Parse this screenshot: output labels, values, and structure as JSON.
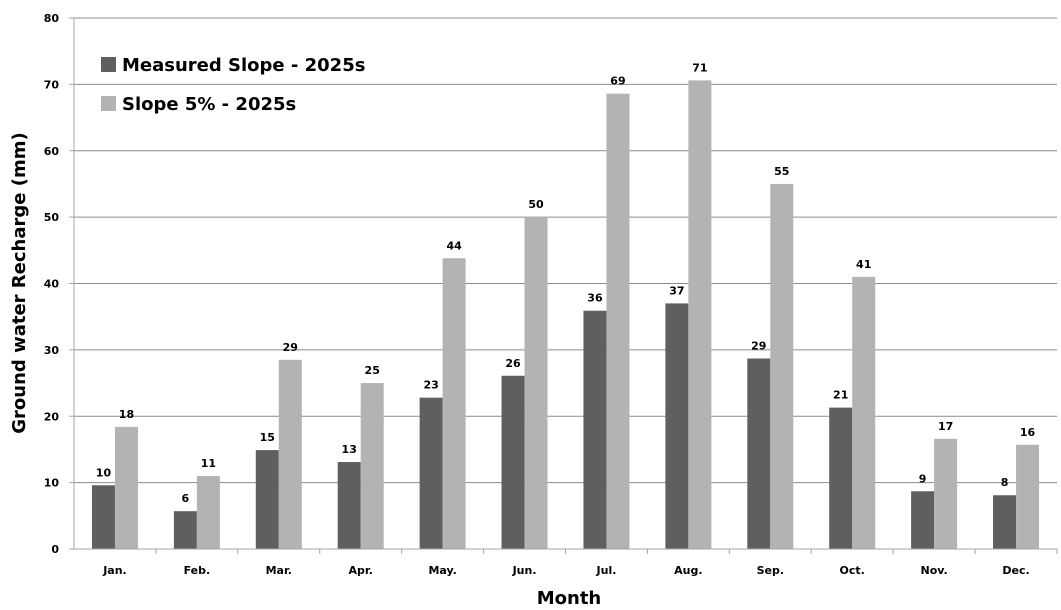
{
  "chart_data": {
    "type": "bar",
    "categories": [
      "Jan.",
      "Feb.",
      "Mar.",
      "Apr.",
      "May.",
      "Jun.",
      "Jul.",
      "Aug.",
      "Sep.",
      "Oct.",
      "Nov.",
      "Dec."
    ],
    "series": [
      {
        "name": "Measured Slope - 2025s",
        "color": "#5f5f5f",
        "values": [
          9.6,
          5.7,
          14.9,
          13.1,
          22.8,
          26.1,
          35.9,
          37.0,
          28.7,
          21.3,
          8.7,
          8.1
        ],
        "labels": [
          "10",
          "6",
          "15",
          "13",
          "23",
          "26",
          "36",
          "37",
          "29",
          "21",
          "9",
          "8"
        ]
      },
      {
        "name": "Slope 5% - 2025s",
        "color": "#b3b3b3",
        "values": [
          18.4,
          11.0,
          28.5,
          25.0,
          43.8,
          50.0,
          68.6,
          70.6,
          55.0,
          41.0,
          16.6,
          15.7
        ],
        "labels": [
          "18",
          "11",
          "29",
          "25",
          "44",
          "50",
          "69",
          "71",
          "55",
          "41",
          "17",
          "16"
        ]
      }
    ],
    "xlabel": "Month",
    "ylabel": "Ground water Recharge (mm)",
    "ylim": [
      0,
      80
    ],
    "yticks": [
      "0",
      "10",
      "20",
      "30",
      "40",
      "50",
      "60",
      "70",
      "80"
    ],
    "grid": true,
    "legend_position": "top-left"
  }
}
